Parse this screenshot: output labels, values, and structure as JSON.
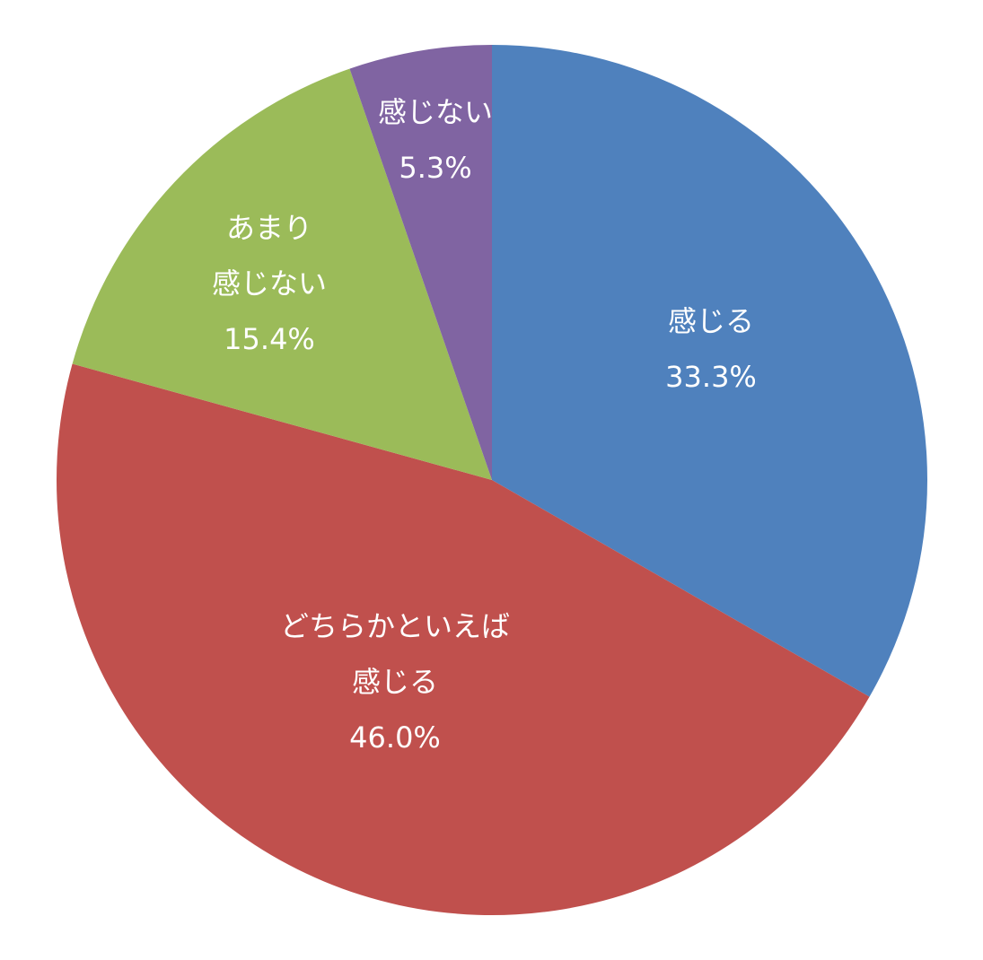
{
  "chart_data": {
    "type": "pie",
    "categories": [
      [
        "感じる"
      ],
      [
        "どちらかといえば",
        "感じる"
      ],
      [
        "あまり",
        "感じない"
      ],
      [
        "感じない"
      ]
    ],
    "values": [
      33.3,
      46.0,
      15.4,
      5.3
    ],
    "value_labels": [
      "33.3%",
      "46.0%",
      "15.4%",
      "5.3%"
    ],
    "colors": [
      "#4f81bd",
      "#c0504d",
      "#9bbb59",
      "#8064a2"
    ]
  }
}
